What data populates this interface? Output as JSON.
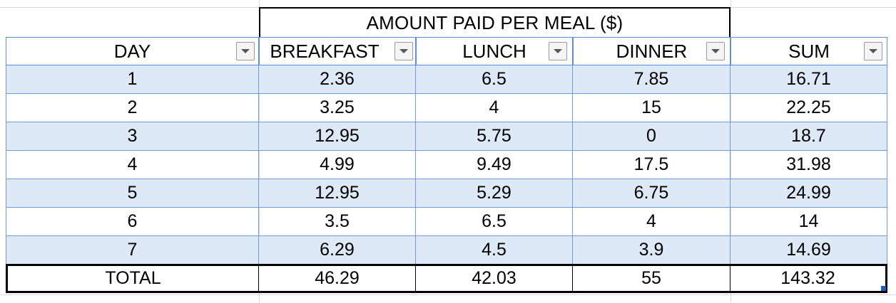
{
  "table": {
    "group_header": "AMOUNT PAID PER MEAL ($)",
    "columns": [
      "DAY",
      "BREAKFAST",
      "LUNCH",
      "DINNER",
      "SUM"
    ],
    "rows": [
      [
        "1",
        "2.36",
        "6.5",
        "7.85",
        "16.71"
      ],
      [
        "2",
        "3.25",
        "4",
        "15",
        "22.25"
      ],
      [
        "3",
        "12.95",
        "5.75",
        "0",
        "18.7"
      ],
      [
        "4",
        "4.99",
        "9.49",
        "17.5",
        "31.98"
      ],
      [
        "5",
        "12.95",
        "5.29",
        "6.75",
        "24.99"
      ],
      [
        "6",
        "3.5",
        "6.5",
        "4",
        "14"
      ],
      [
        "7",
        "6.29",
        "4.5",
        "3.9",
        "14.69"
      ]
    ],
    "total_row": [
      "TOTAL",
      "46.29",
      "42.03",
      "55",
      "143.32"
    ]
  },
  "colors": {
    "header_border": "#5b8fd6",
    "band_fill": "#dde9f6",
    "total_border": "#000000"
  },
  "icons": {
    "filter_dropdown": "chevron-down-icon"
  }
}
